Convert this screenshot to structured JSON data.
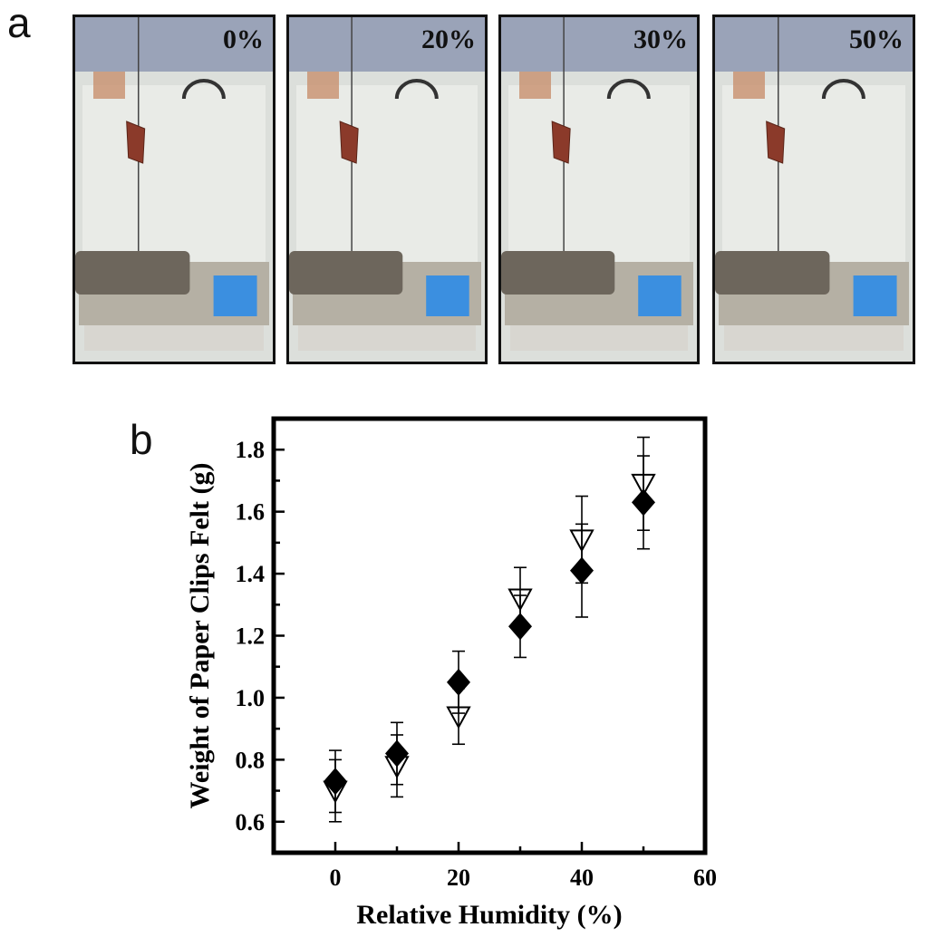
{
  "panels": {
    "a": "a",
    "b": "b"
  },
  "photos": [
    {
      "label": "0%"
    },
    {
      "label": "20%"
    },
    {
      "label": "30%"
    },
    {
      "label": "50%"
    }
  ],
  "colors": {
    "felt": "#8b3a2a",
    "balance": "#b5b0a4",
    "screen": "#3b8fe0",
    "background": "#e9ebe7"
  },
  "chart_data": {
    "type": "scatter",
    "xlabel": "Relative Humidity (%)",
    "ylabel": "Weight of Paper Clips Felt (g)",
    "xlim": [
      -10,
      60
    ],
    "ylim": [
      0.5,
      1.9
    ],
    "xticks": [
      0,
      20,
      40,
      60
    ],
    "yticks": [
      0.6,
      0.8,
      1.0,
      1.2,
      1.4,
      1.6,
      1.8
    ],
    "ytick_labels": [
      "0.6",
      "0.8",
      "1.0",
      "1.2",
      "1.4",
      "1.6",
      "1.8"
    ],
    "series": [
      {
        "marker": "diamond-filled",
        "x": [
          0,
          10,
          20,
          30,
          40,
          50
        ],
        "y": [
          0.73,
          0.82,
          1.05,
          1.23,
          1.41,
          1.63
        ],
        "err": [
          0.1,
          0.1,
          0.1,
          0.1,
          0.15,
          0.15
        ]
      },
      {
        "marker": "triangle-down-open",
        "x": [
          0,
          10,
          20,
          30,
          40,
          50
        ],
        "y": [
          0.7,
          0.78,
          0.94,
          1.32,
          1.51,
          1.69
        ],
        "err": [
          0.1,
          0.1,
          0.09,
          0.1,
          0.14,
          0.15
        ]
      }
    ]
  }
}
